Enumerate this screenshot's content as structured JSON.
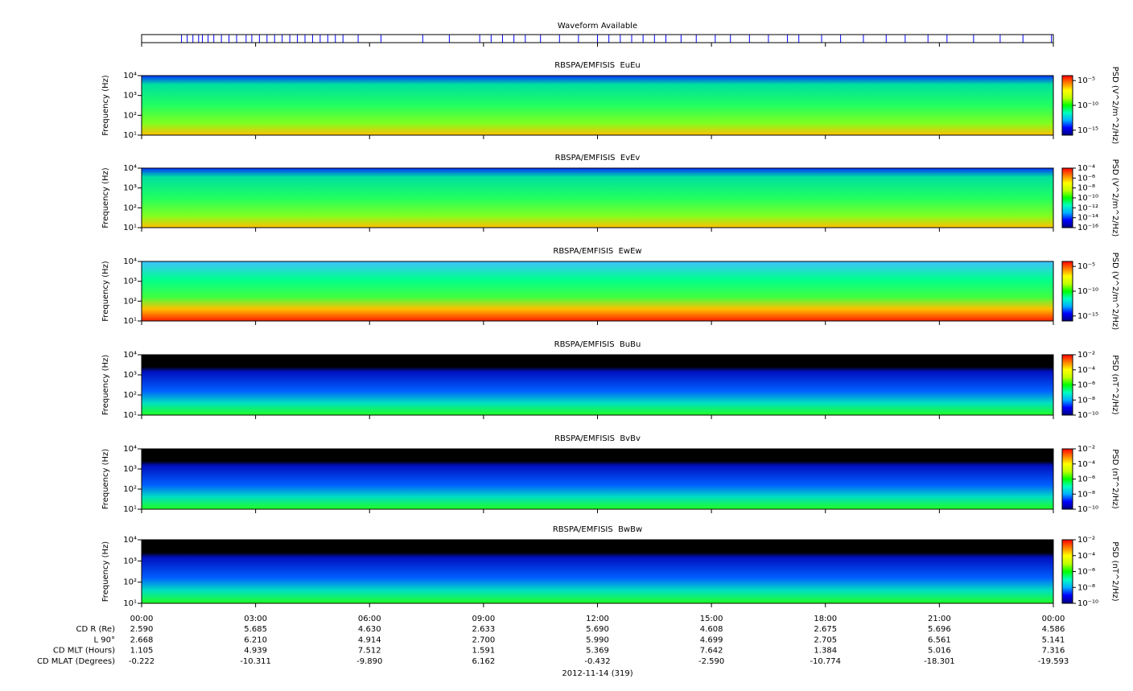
{
  "chart_data": [
    {
      "type": "event",
      "title": "Waveform Available",
      "color": "#0000ff",
      "xlim": [
        0,
        24
      ],
      "x": [
        1.05,
        1.2,
        1.35,
        1.5,
        1.6,
        1.75,
        1.9,
        2.1,
        2.3,
        2.5,
        2.75,
        2.9,
        3.1,
        3.3,
        3.5,
        3.7,
        3.9,
        4.1,
        4.3,
        4.5,
        4.7,
        4.9,
        5.1,
        5.3,
        5.7,
        6.3,
        7.4,
        8.1,
        8.9,
        9.2,
        9.5,
        9.8,
        10.1,
        10.5,
        11.0,
        11.5,
        12.0,
        12.3,
        12.6,
        12.9,
        13.2,
        13.5,
        13.8,
        14.2,
        14.6,
        15.1,
        15.5,
        16.0,
        16.5,
        17.0,
        17.3,
        17.9,
        18.4,
        19.0,
        19.6,
        20.1,
        20.7,
        21.2,
        21.9,
        22.6,
        23.2,
        23.95
      ]
    },
    {
      "type": "spectrogram",
      "title": "RBSPA/EMFISIS  EuEu",
      "ylabel": "Frequency (Hz)",
      "ylog": true,
      "ylim": [
        10,
        10000
      ],
      "yticks": [
        {
          "value": 10,
          "label": "10¹"
        },
        {
          "value": 100,
          "label": "10²"
        },
        {
          "value": 1000,
          "label": "10³"
        },
        {
          "value": 10000,
          "label": "10⁴"
        }
      ],
      "zlabel": "PSD (V^2/m^2/Hz)",
      "zlog": true,
      "zlim": [
        1e-16,
        0.0001
      ],
      "zticks": [
        {
          "value": 1e-05,
          "label": "10⁻⁵"
        },
        {
          "value": 1e-10,
          "label": "10⁻¹⁰"
        },
        {
          "value": 1e-15,
          "label": "10⁻¹⁵"
        }
      ]
    },
    {
      "type": "spectrogram",
      "title": "RBSPA/EMFISIS  EvEv",
      "ylabel": "Frequency (Hz)",
      "ylog": true,
      "ylim": [
        10,
        10000
      ],
      "yticks": [
        {
          "value": 10,
          "label": "10¹"
        },
        {
          "value": 100,
          "label": "10²"
        },
        {
          "value": 1000,
          "label": "10³"
        },
        {
          "value": 10000,
          "label": "10⁴"
        }
      ],
      "zlabel": "PSD (V^2/m^2/Hz)",
      "zlog": true,
      "zlim": [
        1e-16,
        0.0001
      ],
      "zticks": [
        {
          "value": 0.0001,
          "label": "10⁻⁴"
        },
        {
          "value": 1e-06,
          "label": "10⁻⁶"
        },
        {
          "value": 1e-08,
          "label": "10⁻⁸"
        },
        {
          "value": 1e-10,
          "label": "10⁻¹⁰"
        },
        {
          "value": 1e-12,
          "label": "10⁻¹²"
        },
        {
          "value": 1e-14,
          "label": "10⁻¹⁴"
        },
        {
          "value": 1e-16,
          "label": "10⁻¹⁶"
        }
      ]
    },
    {
      "type": "spectrogram",
      "title": "RBSPA/EMFISIS  EwEw",
      "ylabel": "Frequency (Hz)",
      "ylog": true,
      "ylim": [
        10,
        10000
      ],
      "yticks": [
        {
          "value": 10,
          "label": "10¹"
        },
        {
          "value": 100,
          "label": "10²"
        },
        {
          "value": 1000,
          "label": "10³"
        },
        {
          "value": 10000,
          "label": "10⁴"
        }
      ],
      "zlabel": "PSD (V^2/m^2/Hz)",
      "zlog": true,
      "zlim": [
        1e-16,
        0.0001
      ],
      "zticks": [
        {
          "value": 1e-05,
          "label": "10⁻⁵"
        },
        {
          "value": 1e-10,
          "label": "10⁻¹⁰"
        },
        {
          "value": 1e-15,
          "label": "10⁻¹⁵"
        }
      ]
    },
    {
      "type": "spectrogram",
      "title": "RBSPA/EMFISIS  BuBu",
      "ylabel": "Frequency (Hz)",
      "ylog": true,
      "ylim": [
        10,
        10000
      ],
      "yticks": [
        {
          "value": 10,
          "label": "10¹"
        },
        {
          "value": 100,
          "label": "10²"
        },
        {
          "value": 1000,
          "label": "10³"
        },
        {
          "value": 10000,
          "label": "10⁴"
        }
      ],
      "zlabel": "PSD (nT^2/Hz)",
      "zlog": true,
      "zlim": [
        1e-10,
        0.01
      ],
      "zticks": [
        {
          "value": 0.01,
          "label": "10⁻²"
        },
        {
          "value": 0.0001,
          "label": "10⁻⁴"
        },
        {
          "value": 1e-06,
          "label": "10⁻⁶"
        },
        {
          "value": 1e-08,
          "label": "10⁻⁸"
        },
        {
          "value": 1e-10,
          "label": "10⁻¹⁰"
        }
      ]
    },
    {
      "type": "spectrogram",
      "title": "RBSPA/EMFISIS  BvBv",
      "ylabel": "Frequency (Hz)",
      "ylog": true,
      "ylim": [
        10,
        10000
      ],
      "yticks": [
        {
          "value": 10,
          "label": "10¹"
        },
        {
          "value": 100,
          "label": "10²"
        },
        {
          "value": 1000,
          "label": "10³"
        },
        {
          "value": 10000,
          "label": "10⁴"
        }
      ],
      "zlabel": "PSD (nT^2/Hz)",
      "zlog": true,
      "zlim": [
        1e-10,
        0.01
      ],
      "zticks": [
        {
          "value": 0.01,
          "label": "10⁻²"
        },
        {
          "value": 0.0001,
          "label": "10⁻⁴"
        },
        {
          "value": 1e-06,
          "label": "10⁻⁶"
        },
        {
          "value": 1e-08,
          "label": "10⁻⁸"
        },
        {
          "value": 1e-10,
          "label": "10⁻¹⁰"
        }
      ]
    },
    {
      "type": "spectrogram",
      "title": "RBSPA/EMFISIS  BwBw",
      "ylabel": "Frequency (Hz)",
      "ylog": true,
      "ylim": [
        10,
        10000
      ],
      "yticks": [
        {
          "value": 10,
          "label": "10¹"
        },
        {
          "value": 100,
          "label": "10²"
        },
        {
          "value": 1000,
          "label": "10³"
        },
        {
          "value": 10000,
          "label": "10⁴"
        }
      ],
      "zlabel": "PSD (nT^2/Hz)",
      "zlog": true,
      "zlim": [
        1e-10,
        0.01
      ],
      "zticks": [
        {
          "value": 0.01,
          "label": "10⁻²"
        },
        {
          "value": 0.0001,
          "label": "10⁻⁴"
        },
        {
          "value": 1e-06,
          "label": "10⁻⁶"
        },
        {
          "value": 1e-08,
          "label": "10⁻⁸"
        },
        {
          "value": 1e-10,
          "label": "10⁻¹⁰"
        }
      ]
    }
  ],
  "colormap": [
    "#000080",
    "#0000ff",
    "#00b0ff",
    "#00ffc0",
    "#00ff00",
    "#c0ff00",
    "#ffff00",
    "#ff8000",
    "#ff0000"
  ],
  "time_axis": {
    "xlim": [
      0,
      24
    ],
    "xticks": [
      {
        "value": 0,
        "label": "00:00"
      },
      {
        "value": 3,
        "label": "03:00"
      },
      {
        "value": 6,
        "label": "06:00"
      },
      {
        "value": 9,
        "label": "09:00"
      },
      {
        "value": 12,
        "label": "12:00"
      },
      {
        "value": 15,
        "label": "15:00"
      },
      {
        "value": 18,
        "label": "18:00"
      },
      {
        "value": 21,
        "label": "21:00"
      },
      {
        "value": 24,
        "label": "00:00"
      }
    ],
    "rows": [
      {
        "label": "CD R (Re)",
        "values": [
          "2.590",
          "5.685",
          "4.630",
          "2.633",
          "5.690",
          "4.608",
          "2.675",
          "5.696",
          "4.586"
        ]
      },
      {
        "label": "L 90°",
        "values": [
          "2.668",
          "6.210",
          "4.914",
          "2.700",
          "5.990",
          "4.699",
          "2.705",
          "6.561",
          "5.141"
        ]
      },
      {
        "label": "CD MLT (Hours)",
        "values": [
          "1.105",
          "4.939",
          "7.512",
          "1.591",
          "5.369",
          "7.642",
          "1.384",
          "5.016",
          "7.316"
        ]
      },
      {
        "label": "CD MLAT (Degrees)",
        "values": [
          "-0.222",
          "-10.311",
          "-9.890",
          "6.162",
          "-0.432",
          "-2.590",
          "-10.774",
          "-18.301",
          "-19.593"
        ]
      }
    ],
    "date": "2012-11-14 (319)"
  }
}
